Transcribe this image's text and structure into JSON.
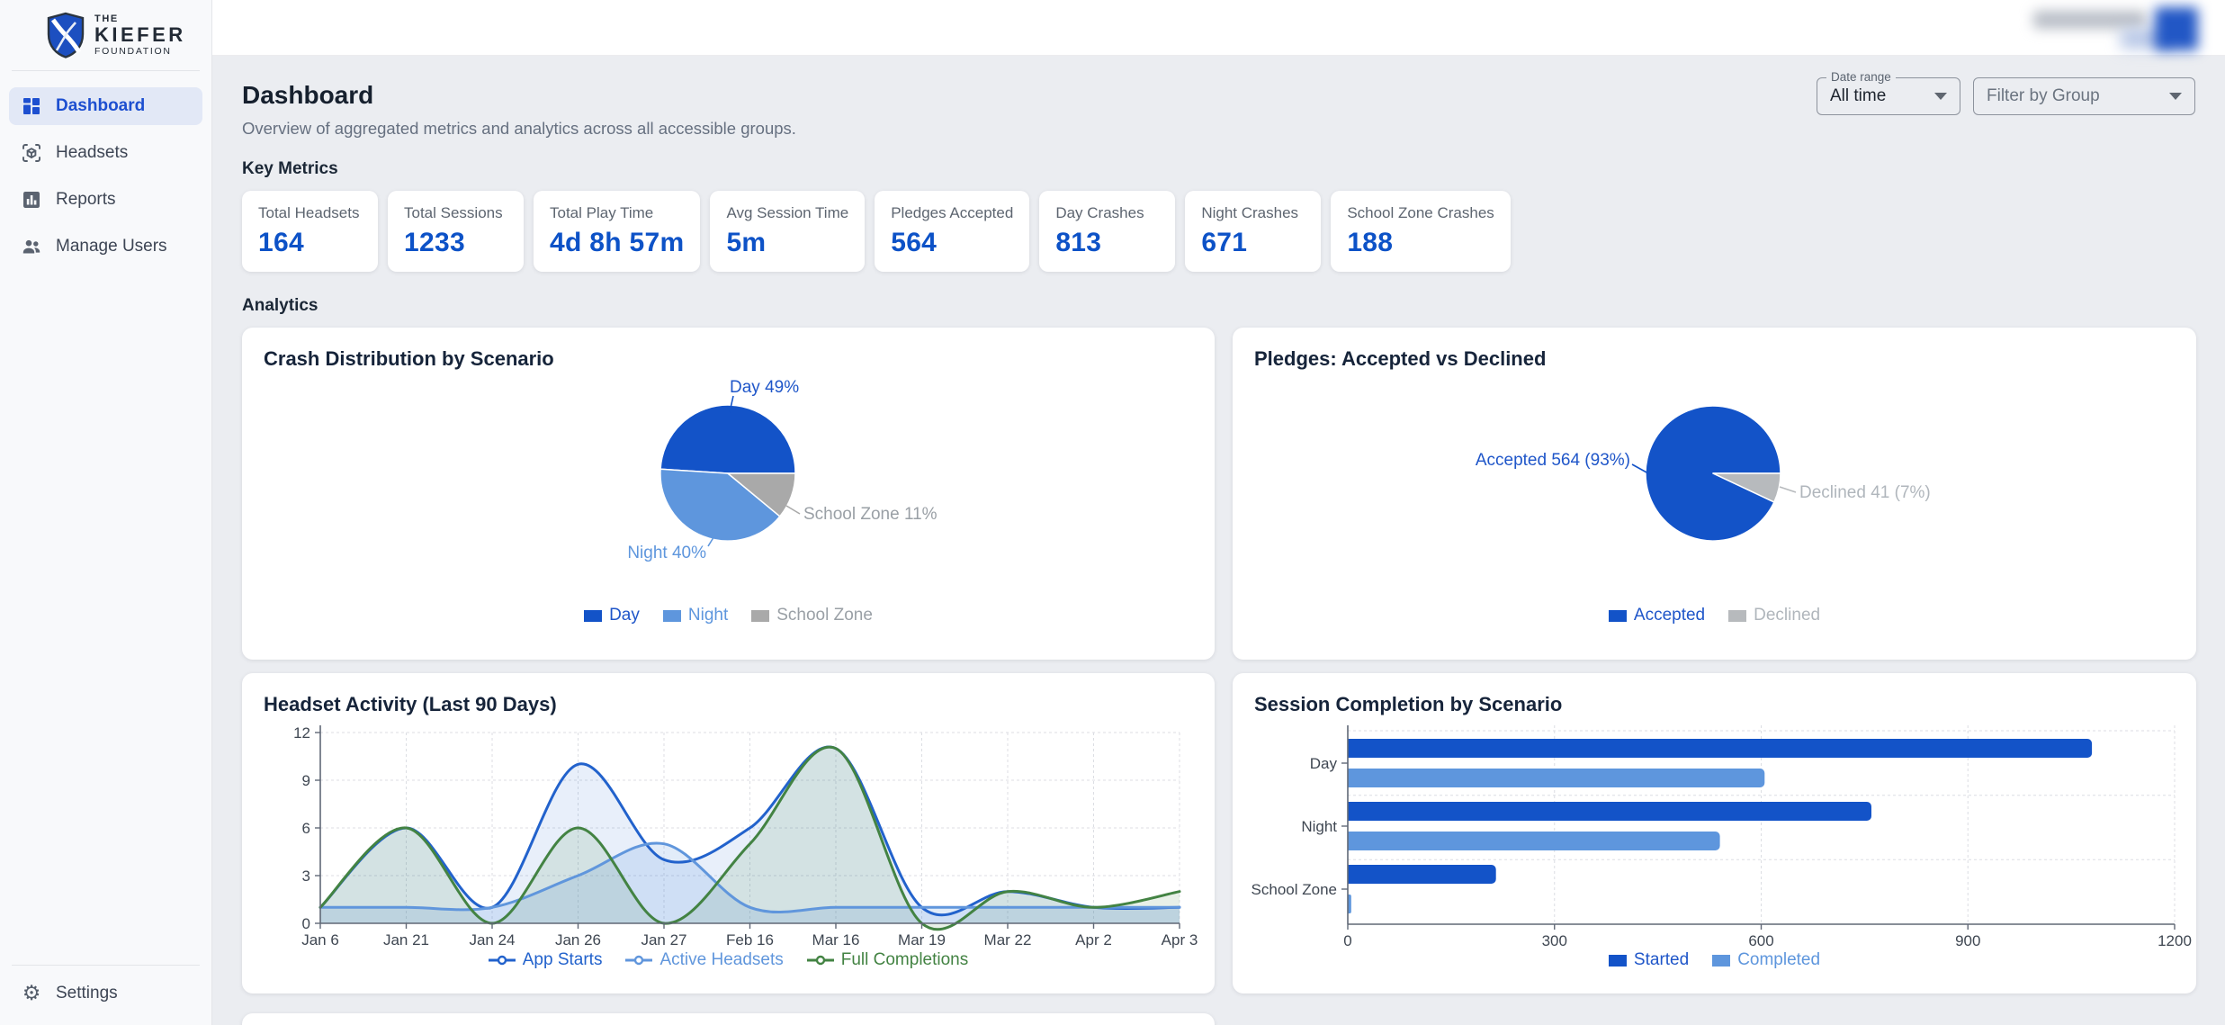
{
  "sidebar": {
    "logo": {
      "line1": "THE",
      "line2": "KIEFER",
      "line3": "FOUNDATION"
    },
    "items": [
      {
        "label": "Dashboard",
        "active": true
      },
      {
        "label": "Headsets",
        "active": false
      },
      {
        "label": "Reports",
        "active": false
      },
      {
        "label": "Manage Users",
        "active": false
      }
    ],
    "settings": {
      "label": "Settings"
    }
  },
  "page": {
    "title": "Dashboard",
    "subtitle": "Overview of aggregated metrics and analytics across all accessible groups.",
    "key_metrics_heading": "Key Metrics",
    "analytics_heading": "Analytics",
    "filters": {
      "date_range": {
        "label": "Date range",
        "value": "All time"
      },
      "group": {
        "placeholder": "Filter by Group"
      }
    }
  },
  "metrics": [
    {
      "label": "Total Headsets",
      "value": "164"
    },
    {
      "label": "Total Sessions",
      "value": "1233"
    },
    {
      "label": "Total Play Time",
      "value": "4d 8h 57m"
    },
    {
      "label": "Avg Session Time",
      "value": "5m"
    },
    {
      "label": "Pledges Accepted",
      "value": "564"
    },
    {
      "label": "Day Crashes",
      "value": "813"
    },
    {
      "label": "Night Crashes",
      "value": "671"
    },
    {
      "label": "School Zone Crashes",
      "value": "188"
    }
  ],
  "colors": {
    "primary_blue": "#1353c8",
    "light_blue": "#5e96dd",
    "green": "#438343",
    "slice_gray": "#a9a9a9",
    "declined_gray": "#b7babd",
    "metric_value_blue": "#0d52c7"
  },
  "chart_data": [
    {
      "type": "pie",
      "title": "Crash Distribution by Scenario",
      "slices": [
        {
          "label": "Day",
          "pct": 49,
          "color": "#1353c8",
          "label_color": "#1f56c9",
          "callout": "Day 49%"
        },
        {
          "label": "Night",
          "pct": 40,
          "color": "#5e96dd",
          "label_color": "#5e96dd",
          "callout": "Night 40%"
        },
        {
          "label": "School Zone",
          "pct": 11,
          "color": "#a9a9a9",
          "label_color": "#9aa0a6",
          "callout": "School Zone 11%"
        }
      ],
      "legend_position": "bottom"
    },
    {
      "type": "pie",
      "title": "Pledges: Accepted vs Declined",
      "slices": [
        {
          "label": "Accepted",
          "value": 564,
          "pct": 93,
          "color": "#1353c8",
          "label_color": "#1f56c9",
          "callout": "Accepted 564 (93%)"
        },
        {
          "label": "Declined",
          "value": 41,
          "pct": 7,
          "color": "#b7babd",
          "label_color": "#b0b6bc",
          "callout": "Declined 41 (7%)"
        }
      ],
      "legend_position": "bottom"
    },
    {
      "type": "line",
      "title": "Headset Activity (Last 90 Days)",
      "x": [
        "Jan 6",
        "Jan 21",
        "Jan 24",
        "Jan 26",
        "Jan 27",
        "Feb 16",
        "Mar 16",
        "Mar 19",
        "Mar 22",
        "Apr 2",
        "Apr 3"
      ],
      "series": [
        {
          "name": "App Starts",
          "color": "#2262cc",
          "fill": "rgba(34,98,204,0.10)",
          "values": [
            1,
            6,
            1,
            10,
            4,
            6,
            11,
            1,
            2,
            1,
            1
          ]
        },
        {
          "name": "Active Headsets",
          "color": "#6096dc",
          "fill": "rgba(96,150,220,0.18)",
          "values": [
            1,
            1,
            1,
            3,
            5,
            1,
            1,
            1,
            1,
            1,
            1
          ]
        },
        {
          "name": "Full Completions",
          "color": "#438343",
          "fill": "rgba(67,131,67,0.12)",
          "values": [
            1,
            6,
            0,
            6,
            0,
            5,
            11,
            0,
            2,
            1,
            2
          ]
        }
      ],
      "ylim": [
        0,
        12
      ],
      "yticks": [
        0,
        3,
        6,
        9,
        12
      ],
      "grid": true,
      "legend_position": "bottom"
    },
    {
      "type": "bar",
      "orientation": "horizontal",
      "title": "Session Completion by Scenario",
      "categories": [
        "Day",
        "Night",
        "School Zone"
      ],
      "series": [
        {
          "name": "Started",
          "color": "#1353c8",
          "label_color": "#1f56c9",
          "values": [
            1080,
            760,
            215
          ]
        },
        {
          "name": "Completed",
          "color": "#5e96dd",
          "label_color": "#5e96dd",
          "values": [
            605,
            540,
            5
          ]
        }
      ],
      "xlim": [
        0,
        1200
      ],
      "xticks": [
        0,
        300,
        600,
        900,
        1200
      ],
      "grid": true,
      "legend_position": "bottom"
    }
  ]
}
